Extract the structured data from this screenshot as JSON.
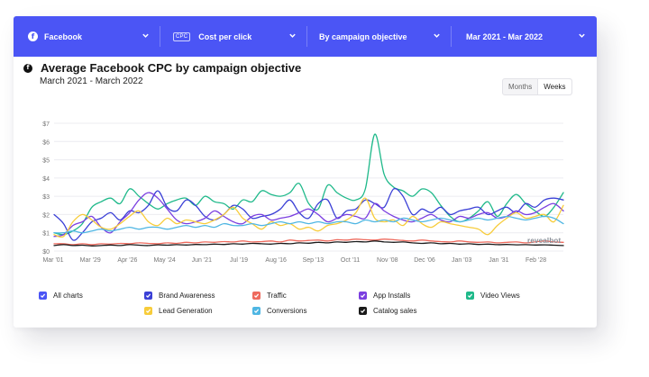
{
  "topbar": {
    "platform": {
      "label": "Facebook",
      "icon": "facebook-icon"
    },
    "metric": {
      "chip": "CPC",
      "label": "Cost per click"
    },
    "breakdown": {
      "label": "By campaign objective"
    },
    "date_range": {
      "label": "Mar 2021 - Mar 2022"
    },
    "color": "#4b55f5"
  },
  "chart_header": {
    "title": "Average Facebook CPC by campaign objective",
    "subtitle": "March 2021 - March 2022"
  },
  "granularity_toggle": {
    "options": [
      "Months",
      "Weeks"
    ],
    "selected": "Weeks"
  },
  "watermark": "revealbot",
  "legend": [
    {
      "label": "All charts",
      "color": "#4b55f5"
    },
    {
      "label": "Brand Awareness",
      "color": "#3b40d6"
    },
    {
      "label": "Traffic",
      "color": "#ee6a5d"
    },
    {
      "label": "App Installs",
      "color": "#7b3fe0"
    },
    {
      "label": "Video Views",
      "color": "#1fb98a"
    },
    {
      "label": "Lead Generation",
      "color": "#f7cc3a"
    },
    {
      "label": "Conversions",
      "color": "#4fb6e3"
    },
    {
      "label": "Catalog sales",
      "color": "#1a1a1a"
    }
  ],
  "chart_data": {
    "type": "line",
    "title": "Average Facebook CPC by campaign objective",
    "subtitle": "March 2021 - March 2022",
    "x_tick_labels": [
      "Mar '01",
      "Mar '29",
      "Apr '26",
      "May '24",
      "Jun '21",
      "Jul '19",
      "Aug '16",
      "Sep '13",
      "Oct '11",
      "Nov '08",
      "Dec '06",
      "Jan '03",
      "Jan '31",
      "Feb '28"
    ],
    "y_tick_labels": [
      "$0",
      "$1",
      "$2",
      "$3",
      "$4",
      "$5",
      "$6",
      "$7"
    ],
    "ylim": [
      0,
      7
    ],
    "grid": "horizontal",
    "series": [
      {
        "name": "Video Views",
        "color": "#1fb98a",
        "values": [
          1.0,
          0.9,
          1.1,
          1.5,
          2.4,
          2.7,
          2.9,
          2.6,
          3.4,
          3.0,
          2.6,
          2.3,
          2.6,
          2.8,
          2.9,
          2.5,
          3.0,
          2.7,
          2.6,
          2.3,
          2.8,
          2.7,
          3.3,
          3.1,
          3.0,
          3.2,
          3.7,
          2.6,
          2.3,
          3.6,
          3.2,
          2.9,
          2.8,
          3.4,
          6.4,
          4.2,
          3.5,
          3.3,
          3.0,
          3.4,
          3.2,
          2.5,
          1.9,
          1.6,
          1.8,
          2.2,
          2.7,
          1.9,
          2.6,
          3.1,
          2.6,
          2.2,
          1.9,
          2.4,
          3.2
        ]
      },
      {
        "name": "Brand Awareness",
        "color": "#3b40d6",
        "values": [
          2.0,
          1.5,
          0.6,
          1.0,
          1.6,
          1.8,
          2.1,
          1.7,
          2.2,
          2.1,
          2.5,
          3.3,
          2.4,
          2.2,
          2.8,
          2.5,
          1.9,
          1.7,
          2.0,
          2.5,
          2.3,
          1.8,
          1.9,
          2.0,
          2.3,
          2.8,
          2.1,
          1.8,
          2.6,
          2.8,
          1.8,
          2.2,
          2.3,
          2.8,
          2.6,
          2.4,
          3.4,
          3.0,
          2.0,
          2.3,
          2.1,
          2.4,
          2.0,
          2.2,
          2.3,
          2.4,
          2.0,
          2.2,
          2.4,
          2.1,
          2.6,
          2.4,
          2.8,
          2.9,
          2.8
        ]
      },
      {
        "name": "App Installs",
        "color": "#7b3fe0",
        "values": [
          0.8,
          0.9,
          1.4,
          1.6,
          1.9,
          1.3,
          1.0,
          1.6,
          2.1,
          2.8,
          3.2,
          2.9,
          2.3,
          1.7,
          1.5,
          1.6,
          1.8,
          2.2,
          1.9,
          1.6,
          1.5,
          1.9,
          2.0,
          1.7,
          1.8,
          1.9,
          2.1,
          2.3,
          2.0,
          1.6,
          1.8,
          2.0,
          1.9,
          1.8,
          2.6,
          2.2,
          1.9,
          1.7,
          1.6,
          1.8,
          2.0,
          1.7,
          1.6,
          1.9,
          1.8,
          2.0,
          2.1,
          1.8,
          1.9,
          2.2,
          2.0,
          2.1,
          2.4,
          2.6,
          2.2
        ]
      },
      {
        "name": "Lead Generation",
        "color": "#f7cc3a",
        "values": [
          0.9,
          0.8,
          1.6,
          2.0,
          1.7,
          1.3,
          1.2,
          1.5,
          1.9,
          2.2,
          1.6,
          1.4,
          1.8,
          1.5,
          1.7,
          1.6,
          1.5,
          1.7,
          2.0,
          2.4,
          1.8,
          1.5,
          1.2,
          1.6,
          1.4,
          1.5,
          1.2,
          1.3,
          1.1,
          1.4,
          1.5,
          1.7,
          2.1,
          2.9,
          1.8,
          1.6,
          1.7,
          1.4,
          1.9,
          1.5,
          1.3,
          1.6,
          1.5,
          1.4,
          1.3,
          1.2,
          0.9,
          1.4,
          1.8,
          2.1,
          1.8,
          1.9,
          2.0,
          1.6,
          2.5
        ]
      },
      {
        "name": "Conversions",
        "color": "#4fb6e3",
        "values": [
          1.0,
          1.0,
          1.1,
          1.0,
          1.1,
          1.2,
          1.1,
          1.2,
          1.3,
          1.2,
          1.3,
          1.3,
          1.2,
          1.3,
          1.4,
          1.3,
          1.4,
          1.3,
          1.5,
          1.4,
          1.4,
          1.5,
          1.4,
          1.5,
          1.6,
          1.5,
          1.6,
          1.5,
          1.6,
          1.5,
          1.6,
          1.6,
          1.5,
          1.7,
          1.6,
          1.7,
          1.6,
          1.8,
          1.7,
          1.6,
          1.7,
          1.8,
          1.7,
          1.6,
          1.7,
          1.8,
          1.7,
          1.8,
          1.9,
          1.8,
          1.7,
          1.8,
          1.9,
          1.8,
          1.5
        ]
      },
      {
        "name": "Traffic",
        "color": "#ee6a5d",
        "values": [
          0.4,
          0.4,
          0.35,
          0.4,
          0.35,
          0.4,
          0.38,
          0.42,
          0.4,
          0.45,
          0.42,
          0.4,
          0.45,
          0.42,
          0.48,
          0.45,
          0.5,
          0.48,
          0.52,
          0.5,
          0.55,
          0.5,
          0.52,
          0.55,
          0.5,
          0.6,
          0.55,
          0.58,
          0.6,
          0.55,
          0.62,
          0.6,
          0.65,
          0.62,
          0.6,
          0.65,
          0.62,
          0.58,
          0.55,
          0.6,
          0.55,
          0.52,
          0.5,
          0.55,
          0.5,
          0.48,
          0.5,
          0.45,
          0.48,
          0.5,
          0.45,
          0.5,
          0.55,
          0.5,
          0.48
        ]
      },
      {
        "name": "Catalog sales",
        "color": "#1a1a1a",
        "values": [
          0.3,
          0.35,
          0.3,
          0.32,
          0.28,
          0.3,
          0.33,
          0.3,
          0.35,
          0.32,
          0.3,
          0.34,
          0.32,
          0.35,
          0.33,
          0.36,
          0.35,
          0.38,
          0.36,
          0.4,
          0.38,
          0.42,
          0.4,
          0.38,
          0.42,
          0.4,
          0.45,
          0.43,
          0.48,
          0.45,
          0.5,
          0.48,
          0.52,
          0.5,
          0.55,
          0.5,
          0.48,
          0.5,
          0.45,
          0.42,
          0.45,
          0.4,
          0.42,
          0.38,
          0.4,
          0.36,
          0.38,
          0.35,
          0.36,
          0.34,
          0.35,
          0.33,
          0.34,
          0.32,
          0.3
        ]
      }
    ]
  }
}
